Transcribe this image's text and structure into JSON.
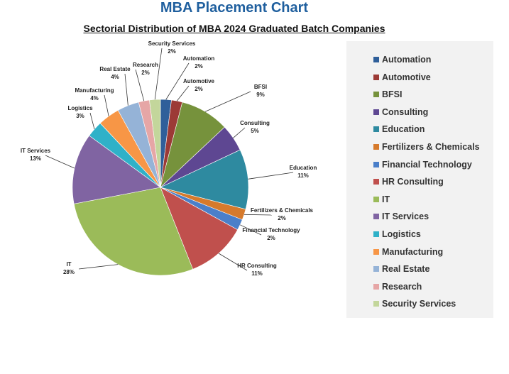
{
  "title": "MBA Placement Chart",
  "subtitle": "Sectorial Distribution of MBA 2024 Graduated Batch Companies",
  "chart_data": {
    "type": "pie",
    "title": "Sectorial Distribution of MBA 2024 Graduated Batch Companies",
    "legend_position": "right",
    "slices": [
      {
        "name": "Automation",
        "value": 2,
        "label": "2%",
        "color": "#2f5f9a"
      },
      {
        "name": "Automotive",
        "value": 2,
        "label": "2%",
        "color": "#9c3a36"
      },
      {
        "name": "BFSI",
        "value": 9,
        "label": "9%",
        "color": "#76923c"
      },
      {
        "name": "Consulting",
        "value": 5,
        "label": "5%",
        "color": "#5e4792"
      },
      {
        "name": "Education",
        "value": 11,
        "label": "11%",
        "color": "#2e8aa0"
      },
      {
        "name": "Fertilizers & Chemicals",
        "value": 2,
        "label": "2%",
        "color": "#d67a2c"
      },
      {
        "name": "Financial Technology",
        "value": 2,
        "label": "2%",
        "color": "#4a7fc9"
      },
      {
        "name": "HR Consulting",
        "value": 11,
        "label": "11%",
        "color": "#c0504d"
      },
      {
        "name": "IT",
        "value": 28,
        "label": "28%",
        "color": "#9bbb59"
      },
      {
        "name": "IT Services",
        "value": 13,
        "label": "13%",
        "color": "#8064a2"
      },
      {
        "name": "Logistics",
        "value": 3,
        "label": "3%",
        "color": "#2fb1c8"
      },
      {
        "name": "Manufacturing",
        "value": 4,
        "label": "4%",
        "color": "#f79646"
      },
      {
        "name": "Real Estate",
        "value": 4,
        "label": "4%",
        "color": "#95b3d7"
      },
      {
        "name": "Research",
        "value": 2,
        "label": "2%",
        "color": "#e6a6a6"
      },
      {
        "name": "Security Services",
        "value": 2,
        "label": "2%",
        "color": "#c3d69b"
      }
    ]
  }
}
